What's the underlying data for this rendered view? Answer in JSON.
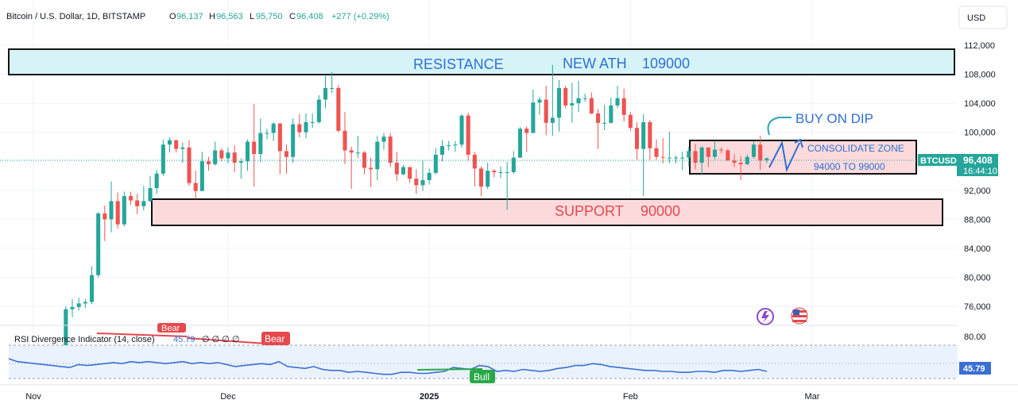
{
  "header": {
    "symbol": "Bitcoin / U.S. Dollar, 1D, BITSTAMP",
    "open_label": "O",
    "open": "96,137",
    "high_label": "H",
    "high": "96,563",
    "low_label": "L",
    "low": "95,750",
    "close_label": "C",
    "close": "96,408",
    "change": "+277 (+0.29%)"
  },
  "currency_button": "USD",
  "price_tag": {
    "symbol": "BTCUSD",
    "price": "96,408",
    "countdown": "16:44:10"
  },
  "annotations": {
    "resistance": "RESISTANCE",
    "new_ath": "NEW ATH",
    "ath_value": "109000",
    "support": "SUPPORT",
    "support_value": "90000",
    "buy_on_dip": "BUY ON DIP",
    "consolidate": "CONSOLIDATE ZONE",
    "consolidate_range": "94000 TO 99000"
  },
  "colors": {
    "up": "#26a69a",
    "down": "#ef5350",
    "resistance_fill": "#d6f4f8",
    "support_fill": "#fcdadc",
    "annotation_text": "#2f6fd1",
    "rsi_line": "#3a6fd3",
    "bull": "#2aa84a",
    "bear": "#e5484d"
  },
  "rsi": {
    "title": "RSI Divergence Indicator (14, close)",
    "value": "45.79",
    "extra": "∅ ∅ ∅ ∅",
    "bear_label": "Bear",
    "bear_label_2": "Bear",
    "bull_label": "Bull",
    "levels": [
      "80.00"
    ],
    "value_tag": "45.79"
  },
  "chart_data": {
    "type": "candlestick",
    "title": "Bitcoin / U.S. Dollar, 1D, BITSTAMP",
    "y_ticks": [
      "112,000",
      "108,000",
      "104,000",
      "100,000",
      "96,000",
      "92,000",
      "88,000",
      "84,000",
      "80,000",
      "76,000"
    ],
    "ylim": [
      72000,
      114000
    ],
    "x_ticks": [
      "Nov",
      "Dec",
      "2025",
      "Feb",
      "Mar"
    ],
    "zones": [
      {
        "name": "RESISTANCE",
        "from": 108000,
        "to": 111500
      },
      {
        "name": "SUPPORT",
        "from": 87500,
        "to": 91000
      },
      {
        "name": "CONSOLIDATE ZONE",
        "from": 94000,
        "to": 99000
      }
    ],
    "candles": [
      {
        "d": "2024-11-05",
        "o": 68500,
        "h": 70600,
        "l": 68000,
        "c": 70000
      },
      {
        "d": "2024-11-06",
        "o": 70000,
        "h": 76000,
        "l": 69500,
        "c": 75600
      },
      {
        "d": "2024-11-07",
        "o": 75600,
        "h": 77000,
        "l": 74500,
        "c": 75900
      },
      {
        "d": "2024-11-08",
        "o": 75900,
        "h": 77200,
        "l": 75400,
        "c": 76400
      },
      {
        "d": "2024-11-09",
        "o": 76400,
        "h": 77000,
        "l": 75800,
        "c": 76600
      },
      {
        "d": "2024-11-10",
        "o": 76600,
        "h": 81500,
        "l": 76300,
        "c": 80300
      },
      {
        "d": "2024-11-11",
        "o": 80300,
        "h": 89000,
        "l": 80000,
        "c": 88800
      },
      {
        "d": "2024-11-12",
        "o": 88800,
        "h": 89900,
        "l": 85000,
        "c": 88000
      },
      {
        "d": "2024-11-13",
        "o": 88000,
        "h": 93200,
        "l": 86200,
        "c": 90500
      },
      {
        "d": "2024-11-14",
        "o": 90500,
        "h": 91700,
        "l": 86700,
        "c": 87300
      },
      {
        "d": "2024-11-15",
        "o": 87300,
        "h": 91800,
        "l": 87000,
        "c": 91200
      },
      {
        "d": "2024-11-16",
        "o": 91200,
        "h": 91800,
        "l": 90000,
        "c": 90600
      },
      {
        "d": "2024-11-17",
        "o": 90600,
        "h": 91500,
        "l": 88700,
        "c": 89800
      },
      {
        "d": "2024-11-18",
        "o": 89800,
        "h": 92600,
        "l": 89200,
        "c": 90500
      },
      {
        "d": "2024-11-19",
        "o": 90500,
        "h": 94000,
        "l": 90400,
        "c": 92300
      },
      {
        "d": "2024-11-20",
        "o": 92300,
        "h": 94800,
        "l": 91500,
        "c": 94300
      },
      {
        "d": "2024-11-21",
        "o": 94300,
        "h": 99000,
        "l": 94000,
        "c": 98300
      },
      {
        "d": "2024-11-22",
        "o": 98300,
        "h": 99300,
        "l": 97200,
        "c": 98900
      },
      {
        "d": "2024-11-23",
        "o": 98900,
        "h": 99000,
        "l": 97200,
        "c": 97700
      },
      {
        "d": "2024-11-24",
        "o": 97700,
        "h": 98600,
        "l": 95800,
        "c": 97900
      },
      {
        "d": "2024-11-25",
        "o": 97900,
        "h": 98900,
        "l": 92600,
        "c": 93000
      },
      {
        "d": "2024-11-26",
        "o": 93000,
        "h": 94700,
        "l": 90800,
        "c": 91900
      },
      {
        "d": "2024-11-27",
        "o": 91900,
        "h": 97300,
        "l": 91900,
        "c": 96000
      },
      {
        "d": "2024-11-28",
        "o": 96000,
        "h": 96600,
        "l": 94700,
        "c": 95600
      },
      {
        "d": "2024-11-29",
        "o": 95600,
        "h": 98700,
        "l": 95400,
        "c": 97500
      },
      {
        "d": "2024-11-30",
        "o": 97500,
        "h": 97800,
        "l": 96000,
        "c": 96400
      },
      {
        "d": "2024-12-01",
        "o": 96400,
        "h": 97900,
        "l": 95700,
        "c": 97200
      },
      {
        "d": "2024-12-02",
        "o": 97200,
        "h": 98200,
        "l": 94500,
        "c": 95800
      },
      {
        "d": "2024-12-03",
        "o": 95800,
        "h": 96400,
        "l": 93600,
        "c": 96000
      },
      {
        "d": "2024-12-04",
        "o": 96000,
        "h": 99000,
        "l": 94700,
        "c": 98700
      },
      {
        "d": "2024-12-05",
        "o": 98700,
        "h": 103900,
        "l": 92500,
        "c": 97000
      },
      {
        "d": "2024-12-06",
        "o": 97000,
        "h": 101900,
        "l": 95900,
        "c": 99900
      },
      {
        "d": "2024-12-07",
        "o": 99900,
        "h": 100500,
        "l": 99000,
        "c": 99900
      },
      {
        "d": "2024-12-08",
        "o": 99900,
        "h": 101400,
        "l": 98800,
        "c": 101200
      },
      {
        "d": "2024-12-09",
        "o": 101200,
        "h": 101300,
        "l": 94200,
        "c": 97400
      },
      {
        "d": "2024-12-10",
        "o": 97400,
        "h": 98300,
        "l": 94300,
        "c": 96600
      },
      {
        "d": "2024-12-11",
        "o": 96600,
        "h": 101900,
        "l": 95800,
        "c": 101100
      },
      {
        "d": "2024-12-12",
        "o": 101100,
        "h": 102500,
        "l": 99300,
        "c": 100000
      },
      {
        "d": "2024-12-13",
        "o": 100000,
        "h": 102600,
        "l": 99200,
        "c": 101400
      },
      {
        "d": "2024-12-14",
        "o": 101400,
        "h": 102600,
        "l": 100600,
        "c": 101400
      },
      {
        "d": "2024-12-15",
        "o": 101400,
        "h": 105100,
        "l": 101200,
        "c": 104500
      },
      {
        "d": "2024-12-16",
        "o": 104500,
        "h": 107800,
        "l": 103300,
        "c": 106100
      },
      {
        "d": "2024-12-17",
        "o": 106100,
        "h": 108300,
        "l": 105400,
        "c": 106100
      },
      {
        "d": "2024-12-18",
        "o": 106100,
        "h": 106500,
        "l": 100000,
        "c": 100200
      },
      {
        "d": "2024-12-19",
        "o": 100200,
        "h": 102800,
        "l": 95600,
        "c": 97500
      },
      {
        "d": "2024-12-20",
        "o": 97500,
        "h": 98000,
        "l": 92200,
        "c": 97200
      },
      {
        "d": "2024-12-21",
        "o": 97200,
        "h": 99500,
        "l": 96400,
        "c": 97200
      },
      {
        "d": "2024-12-22",
        "o": 97200,
        "h": 97400,
        "l": 94200,
        "c": 95100
      },
      {
        "d": "2024-12-23",
        "o": 95100,
        "h": 96500,
        "l": 92400,
        "c": 94900
      },
      {
        "d": "2024-12-24",
        "o": 94900,
        "h": 99500,
        "l": 93400,
        "c": 98700
      },
      {
        "d": "2024-12-25",
        "o": 98700,
        "h": 99900,
        "l": 97600,
        "c": 99400
      },
      {
        "d": "2024-12-26",
        "o": 99400,
        "h": 99900,
        "l": 95200,
        "c": 95800
      },
      {
        "d": "2024-12-27",
        "o": 95800,
        "h": 97300,
        "l": 93300,
        "c": 94200
      },
      {
        "d": "2024-12-28",
        "o": 94200,
        "h": 95500,
        "l": 94100,
        "c": 95200
      },
      {
        "d": "2024-12-29",
        "o": 95200,
        "h": 95200,
        "l": 93000,
        "c": 93600
      },
      {
        "d": "2024-12-30",
        "o": 93600,
        "h": 94900,
        "l": 91500,
        "c": 92700
      },
      {
        "d": "2024-12-31",
        "o": 92700,
        "h": 96100,
        "l": 91900,
        "c": 93400
      },
      {
        "d": "2025-01-01",
        "o": 93400,
        "h": 95000,
        "l": 92800,
        "c": 94400
      },
      {
        "d": "2025-01-02",
        "o": 94400,
        "h": 97800,
        "l": 94200,
        "c": 96900
      },
      {
        "d": "2025-01-03",
        "o": 96900,
        "h": 98900,
        "l": 96000,
        "c": 98100
      },
      {
        "d": "2025-01-04",
        "o": 98100,
        "h": 98800,
        "l": 97500,
        "c": 98200
      },
      {
        "d": "2025-01-05",
        "o": 98200,
        "h": 98800,
        "l": 97300,
        "c": 98300
      },
      {
        "d": "2025-01-06",
        "o": 98300,
        "h": 102500,
        "l": 97900,
        "c": 102300
      },
      {
        "d": "2025-01-07",
        "o": 102300,
        "h": 102700,
        "l": 96100,
        "c": 96900
      },
      {
        "d": "2025-01-08",
        "o": 96900,
        "h": 97300,
        "l": 92500,
        "c": 95000
      },
      {
        "d": "2025-01-09",
        "o": 95000,
        "h": 95300,
        "l": 91200,
        "c": 92500
      },
      {
        "d": "2025-01-10",
        "o": 92500,
        "h": 95800,
        "l": 92200,
        "c": 94700
      },
      {
        "d": "2025-01-11",
        "o": 94700,
        "h": 94900,
        "l": 93800,
        "c": 94500
      },
      {
        "d": "2025-01-12",
        "o": 94500,
        "h": 95300,
        "l": 93700,
        "c": 94500
      },
      {
        "d": "2025-01-13",
        "o": 94500,
        "h": 95900,
        "l": 89300,
        "c": 94500
      },
      {
        "d": "2025-01-14",
        "o": 94500,
        "h": 97400,
        "l": 94300,
        "c": 96500
      },
      {
        "d": "2025-01-15",
        "o": 96500,
        "h": 100700,
        "l": 96500,
        "c": 100500
      },
      {
        "d": "2025-01-16",
        "o": 100500,
        "h": 100800,
        "l": 97300,
        "c": 99900
      },
      {
        "d": "2025-01-17",
        "o": 99900,
        "h": 105900,
        "l": 99900,
        "c": 104100
      },
      {
        "d": "2025-01-18",
        "o": 104100,
        "h": 104900,
        "l": 102400,
        "c": 104500
      },
      {
        "d": "2025-01-19",
        "o": 104500,
        "h": 106400,
        "l": 99600,
        "c": 101300
      },
      {
        "d": "2025-01-20",
        "o": 101300,
        "h": 109300,
        "l": 99500,
        "c": 102000
      },
      {
        "d": "2025-01-21",
        "o": 102000,
        "h": 107200,
        "l": 100100,
        "c": 106100
      },
      {
        "d": "2025-01-22",
        "o": 106100,
        "h": 106400,
        "l": 103300,
        "c": 103700
      },
      {
        "d": "2025-01-23",
        "o": 103700,
        "h": 106800,
        "l": 101300,
        "c": 104000
      },
      {
        "d": "2025-01-24",
        "o": 104000,
        "h": 107100,
        "l": 102800,
        "c": 104700
      },
      {
        "d": "2025-01-25",
        "o": 104700,
        "h": 105300,
        "l": 104200,
        "c": 104700
      },
      {
        "d": "2025-01-26",
        "o": 104700,
        "h": 105500,
        "l": 102500,
        "c": 102600
      },
      {
        "d": "2025-01-27",
        "o": 102600,
        "h": 103200,
        "l": 97700,
        "c": 101300
      },
      {
        "d": "2025-01-28",
        "o": 101300,
        "h": 103800,
        "l": 100300,
        "c": 101300
      },
      {
        "d": "2025-01-29",
        "o": 101300,
        "h": 104800,
        "l": 101200,
        "c": 103700
      },
      {
        "d": "2025-01-30",
        "o": 103700,
        "h": 106400,
        "l": 103300,
        "c": 104700
      },
      {
        "d": "2025-01-31",
        "o": 104700,
        "h": 106000,
        "l": 101500,
        "c": 102400
      },
      {
        "d": "2025-02-01",
        "o": 102400,
        "h": 102800,
        "l": 100200,
        "c": 100600
      },
      {
        "d": "2025-02-02",
        "o": 100600,
        "h": 101400,
        "l": 96200,
        "c": 97700
      },
      {
        "d": "2025-02-03",
        "o": 97700,
        "h": 102500,
        "l": 91200,
        "c": 101400
      },
      {
        "d": "2025-02-04",
        "o": 101400,
        "h": 101700,
        "l": 96200,
        "c": 97800
      },
      {
        "d": "2025-02-05",
        "o": 97800,
        "h": 99000,
        "l": 96200,
        "c": 96600
      },
      {
        "d": "2025-02-06",
        "o": 96600,
        "h": 99200,
        "l": 95700,
        "c": 96500
      },
      {
        "d": "2025-02-07",
        "o": 96500,
        "h": 100100,
        "l": 95700,
        "c": 96500
      },
      {
        "d": "2025-02-08",
        "o": 96500,
        "h": 96800,
        "l": 95700,
        "c": 96500
      },
      {
        "d": "2025-02-09",
        "o": 96500,
        "h": 97300,
        "l": 94800,
        "c": 96500
      },
      {
        "d": "2025-02-10",
        "o": 96500,
        "h": 98000,
        "l": 95300,
        "c": 97400
      },
      {
        "d": "2025-02-11",
        "o": 97400,
        "h": 98400,
        "l": 94900,
        "c": 95800
      },
      {
        "d": "2025-02-12",
        "o": 95800,
        "h": 98100,
        "l": 94100,
        "c": 97900
      },
      {
        "d": "2025-02-13",
        "o": 97900,
        "h": 97900,
        "l": 95200,
        "c": 96600
      },
      {
        "d": "2025-02-14",
        "o": 96600,
        "h": 98800,
        "l": 96300,
        "c": 97600
      },
      {
        "d": "2025-02-15",
        "o": 97600,
        "h": 97900,
        "l": 97100,
        "c": 97500
      },
      {
        "d": "2025-02-16",
        "o": 97500,
        "h": 97700,
        "l": 96100,
        "c": 96100
      },
      {
        "d": "2025-02-17",
        "o": 96100,
        "h": 97000,
        "l": 95200,
        "c": 95800
      },
      {
        "d": "2025-02-18",
        "o": 95800,
        "h": 96700,
        "l": 93400,
        "c": 95600
      },
      {
        "d": "2025-02-19",
        "o": 95600,
        "h": 96900,
        "l": 95500,
        "c": 96600
      },
      {
        "d": "2025-02-20",
        "o": 96600,
        "h": 98700,
        "l": 96400,
        "c": 98300
      },
      {
        "d": "2025-02-21",
        "o": 98300,
        "h": 99500,
        "l": 94800,
        "c": 96100
      },
      {
        "d": "2025-02-22",
        "o": 96137,
        "h": 96563,
        "l": 95750,
        "c": 96408
      }
    ],
    "rsi_series": [
      58,
      55,
      54,
      53,
      52,
      51,
      50,
      49,
      52,
      51,
      52,
      53,
      54,
      53,
      55,
      54,
      55,
      54,
      53,
      54,
      55,
      53,
      54,
      53,
      54,
      52,
      50,
      51,
      52,
      53,
      52,
      55,
      50,
      49,
      48,
      50,
      47,
      46,
      46,
      44,
      45,
      44,
      43,
      42,
      42,
      44,
      44,
      43,
      43,
      44,
      45,
      49,
      48,
      47,
      51,
      50,
      45,
      46,
      45,
      47,
      46,
      45,
      46,
      48,
      49,
      51,
      51,
      53,
      52,
      50,
      49,
      48,
      47,
      46,
      46,
      45,
      45,
      44,
      44,
      45,
      45,
      44,
      46,
      46,
      45,
      46,
      47,
      45
    ],
    "rsi_ylim": [
      30,
      90
    ]
  }
}
